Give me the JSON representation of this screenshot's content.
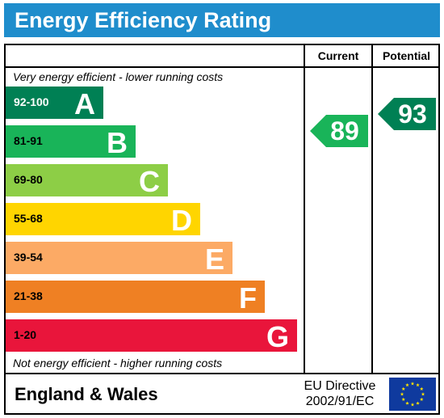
{
  "header": {
    "title": "Energy Efficiency Rating"
  },
  "columns": {
    "current": "Current",
    "potential": "Potential"
  },
  "notes": {
    "top": "Very energy efficient - lower running costs",
    "bottom": "Not energy efficient - higher running costs"
  },
  "chart_data": {
    "type": "bar",
    "title": "Energy Efficiency Rating",
    "categories": [
      "92-100",
      "81-91",
      "69-80",
      "55-68",
      "39-54",
      "21-38",
      "1-20"
    ],
    "letters": [
      "A",
      "B",
      "C",
      "D",
      "E",
      "F",
      "G"
    ],
    "colors": [
      "#008054",
      "#19b459",
      "#8dce46",
      "#ffd500",
      "#fcaa65",
      "#ef8023",
      "#e9153b"
    ],
    "current": {
      "value": 89,
      "band": "B",
      "color": "#19b459"
    },
    "potential": {
      "value": 93,
      "band": "A",
      "color": "#008054"
    }
  },
  "footer": {
    "region": "England & Wales",
    "directive_line1": "EU Directive",
    "directive_line2": "2002/91/EC",
    "flag_icon": "eu-flag-icon"
  }
}
